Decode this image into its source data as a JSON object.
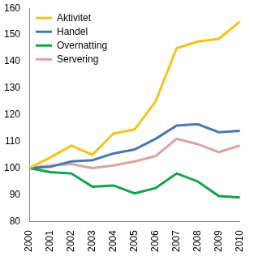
{
  "chart_data": {
    "type": "line",
    "categories": [
      "2000",
      "2001",
      "2002",
      "2003",
      "2004",
      "2005",
      "2006",
      "2007",
      "2008",
      "2009",
      "2010"
    ],
    "series": [
      {
        "name": "Aktivitet",
        "color": "#f7c21e",
        "values": [
          100,
          104,
          108.5,
          105,
          113,
          114.5,
          125,
          145,
          147.5,
          148.5,
          155
        ]
      },
      {
        "name": "Handel",
        "color": "#4a78b0",
        "values": [
          100,
          100.5,
          102.5,
          103,
          105.5,
          107,
          111,
          116,
          116.5,
          113.5,
          114
        ]
      },
      {
        "name": "Overnatting",
        "color": "#13a24a",
        "values": [
          100,
          98.5,
          98,
          93,
          93.5,
          90.5,
          92.5,
          98,
          95,
          89.5,
          89
        ]
      },
      {
        "name": "Servering",
        "color": "#dba3a0",
        "values": [
          100,
          101,
          101.5,
          100,
          101,
          102.5,
          104.5,
          111,
          109,
          106,
          108.5
        ]
      }
    ],
    "ylim": [
      80,
      160
    ],
    "yticks": [
      80,
      90,
      100,
      110,
      120,
      130,
      140,
      150,
      160
    ],
    "grid": false,
    "legend": "upper left"
  }
}
